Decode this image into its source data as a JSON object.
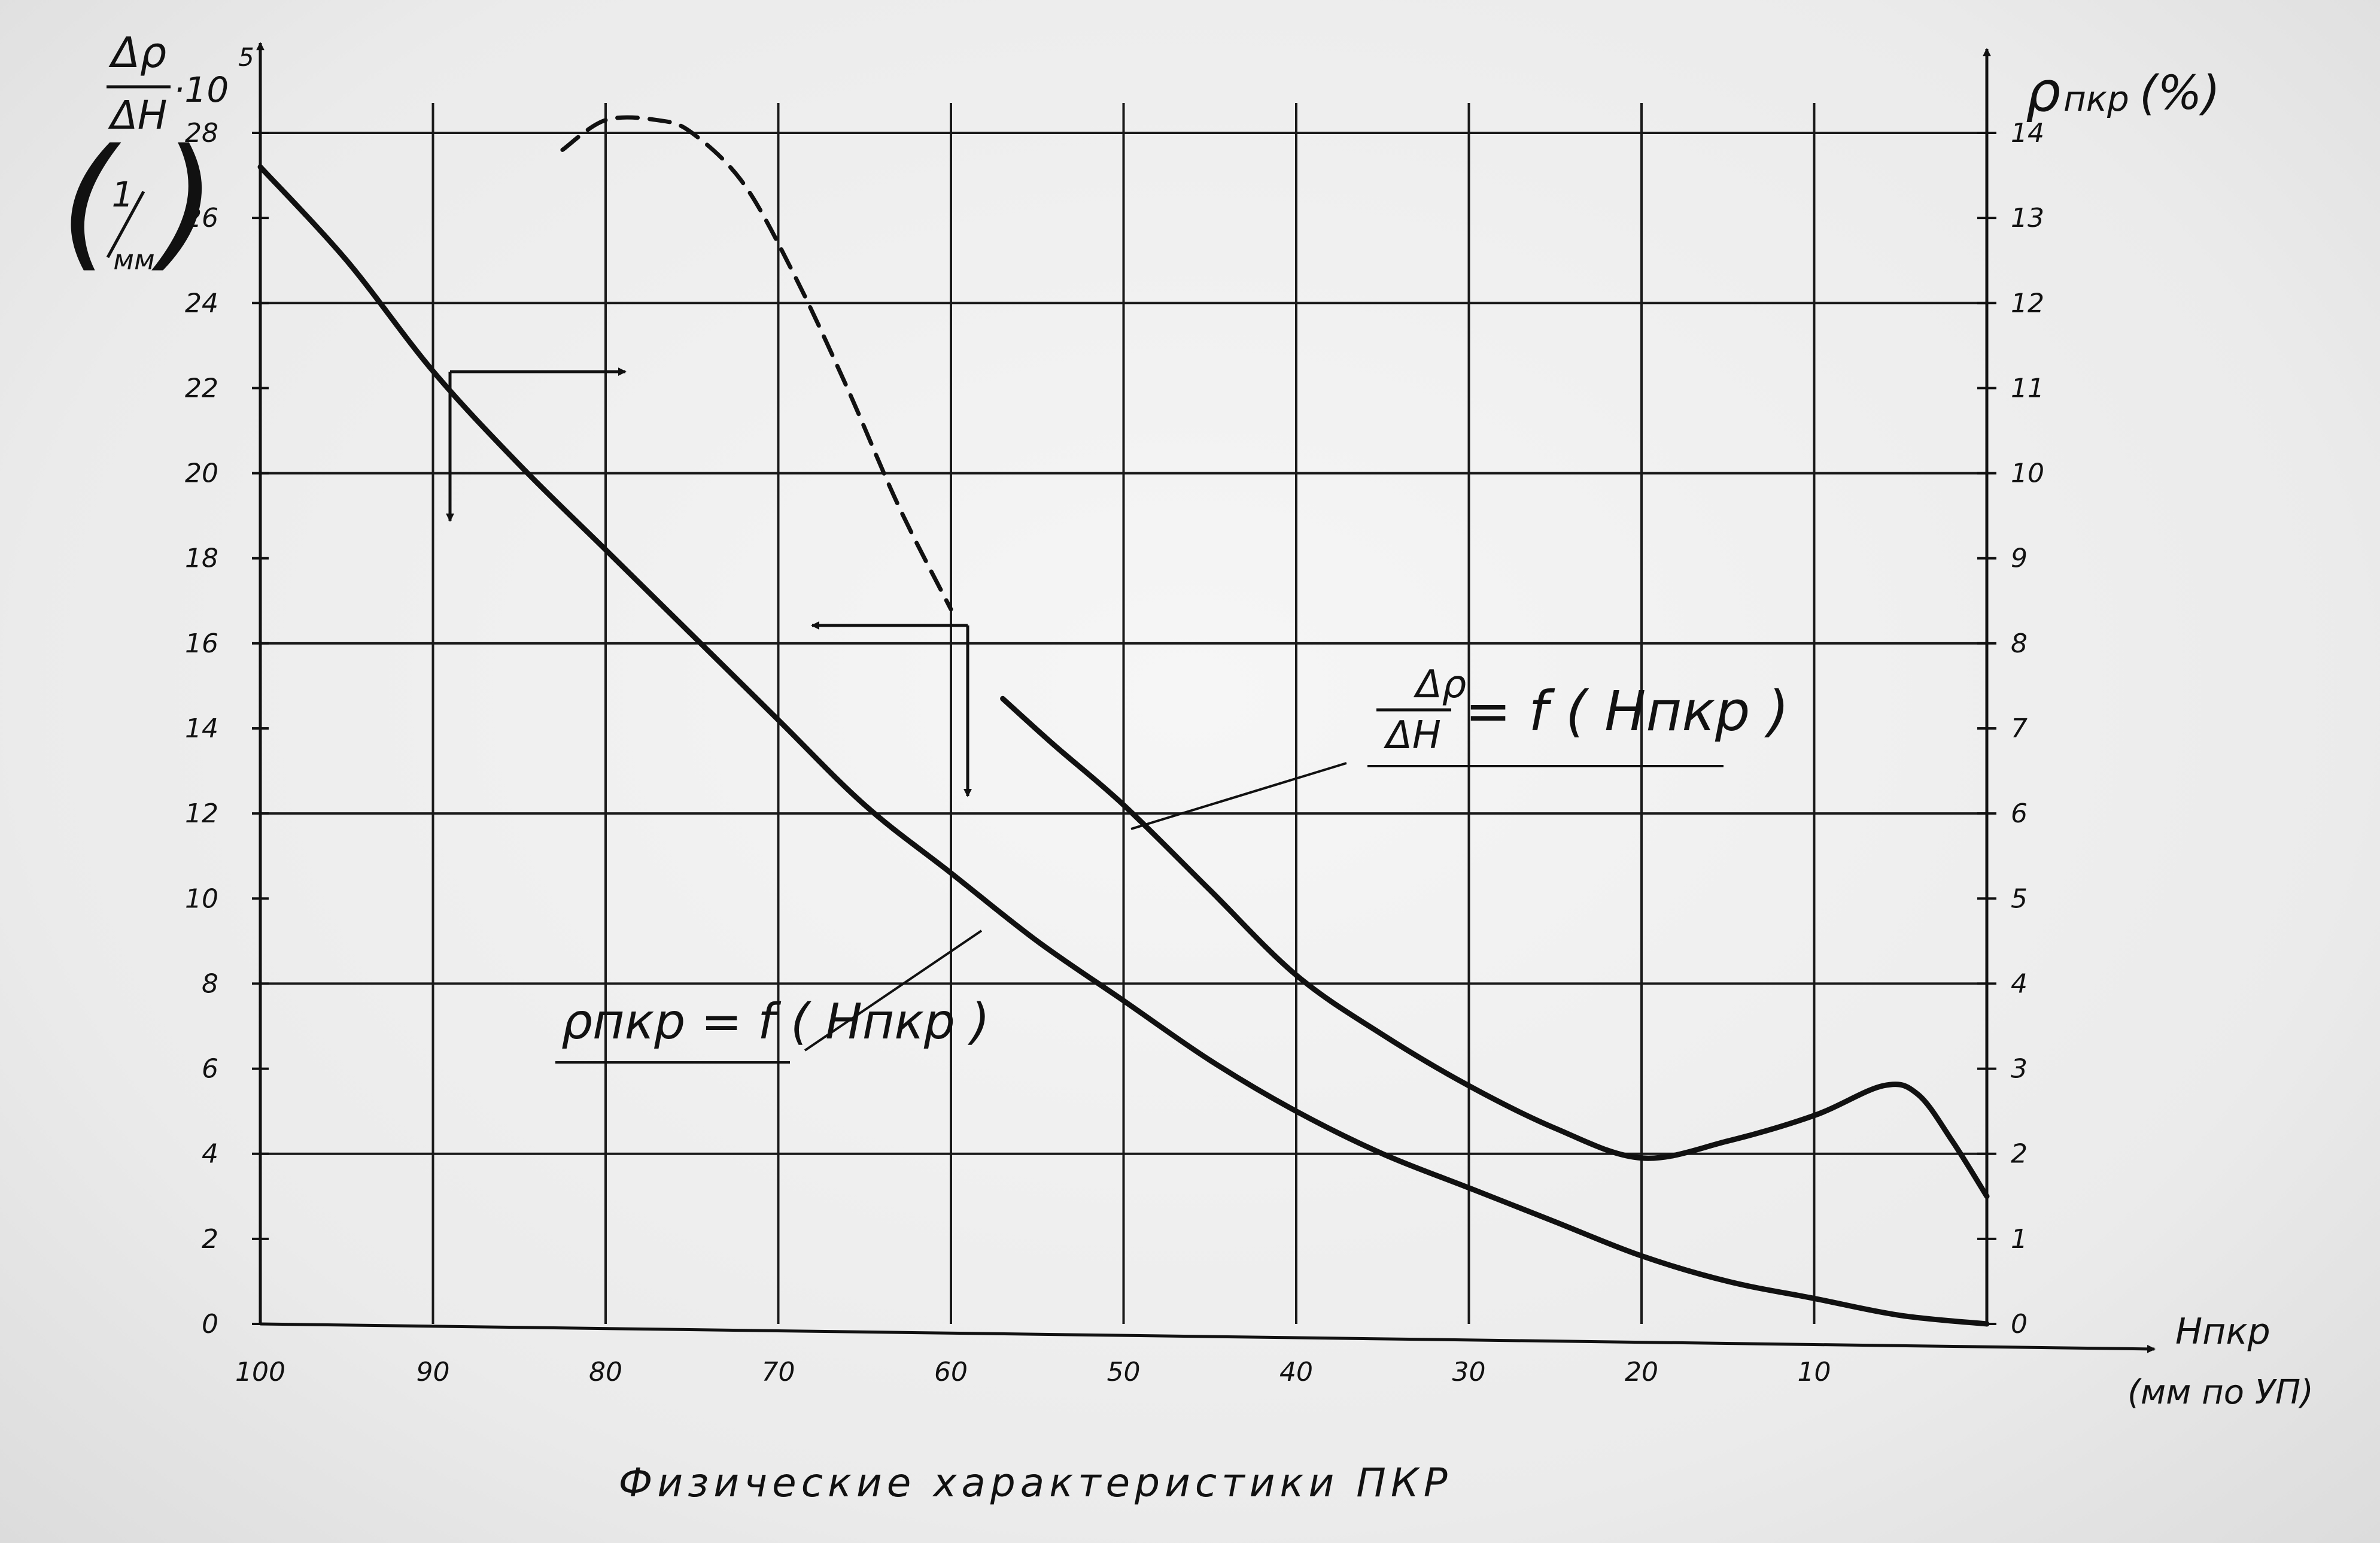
{
  "chart_data": {
    "type": "line",
    "title": "Физические характеристики ПКР",
    "xlabel": "Hпкр",
    "xlabel_unit": "(мм по УП)",
    "ylabel_left": {
      "top": "Δρ",
      "bottom": "ΔH",
      "factor_base": "·10",
      "factor_exp": "5",
      "unit_top": "1",
      "unit_bottom": "мм"
    },
    "ylabel_right": {
      "symbol": "ρ",
      "subscript": "пкр",
      "unit": "(%)"
    },
    "xlim": [
      100,
      0
    ],
    "ylim_left": [
      0,
      28
    ],
    "ylim_right": [
      0,
      14
    ],
    "x_ticks": [
      100,
      90,
      80,
      70,
      60,
      50,
      40,
      30,
      20,
      10
    ],
    "y_left_ticks": [
      0,
      2,
      4,
      6,
      8,
      10,
      12,
      14,
      16,
      18,
      20,
      22,
      24,
      26,
      28
    ],
    "y_right_ticks": [
      0,
      1,
      2,
      3,
      4,
      5,
      6,
      7,
      8,
      9,
      10,
      11,
      12,
      13,
      14
    ],
    "grid": true,
    "series": [
      {
        "name": "Δρ/ΔH = f(Hпкр)",
        "label_lhs_top": "Δρ",
        "label_lhs_bottom": "ΔH",
        "label_rhs": "= f ( Hпкр )",
        "axis": "left",
        "style": "solid",
        "x": [
          82.5,
          80,
          77,
          75,
          72,
          69,
          66,
          63,
          60,
          57,
          54,
          50,
          45,
          40,
          35,
          30,
          25,
          20,
          15,
          10,
          6,
          4,
          2,
          0
        ],
        "y": [
          27.6,
          28.3,
          28.3,
          28.0,
          26.8,
          24.6,
          22.0,
          19.2,
          16.8,
          14.7,
          13.6,
          12.2,
          10.2,
          8.2,
          6.8,
          5.6,
          4.6,
          3.9,
          4.3,
          4.9,
          5.6,
          5.4,
          4.3,
          3.0
        ],
        "dashed_x_range": [
          58,
          82.5
        ]
      },
      {
        "name": "ρпкр = f(Hпкр)",
        "label": "ρпкр = f ( Hпкр )",
        "axis": "right",
        "style": "solid",
        "x": [
          100,
          95,
          90,
          85,
          80,
          75,
          70,
          65,
          60,
          55,
          50,
          45,
          40,
          35,
          30,
          25,
          20,
          15,
          10,
          5,
          0
        ],
        "y": [
          13.6,
          12.5,
          11.2,
          10.1,
          9.1,
          8.1,
          7.1,
          6.1,
          5.3,
          4.5,
          3.8,
          3.1,
          2.5,
          2.0,
          1.6,
          1.2,
          0.8,
          0.5,
          0.3,
          0.1,
          0.0
        ]
      }
    ]
  }
}
